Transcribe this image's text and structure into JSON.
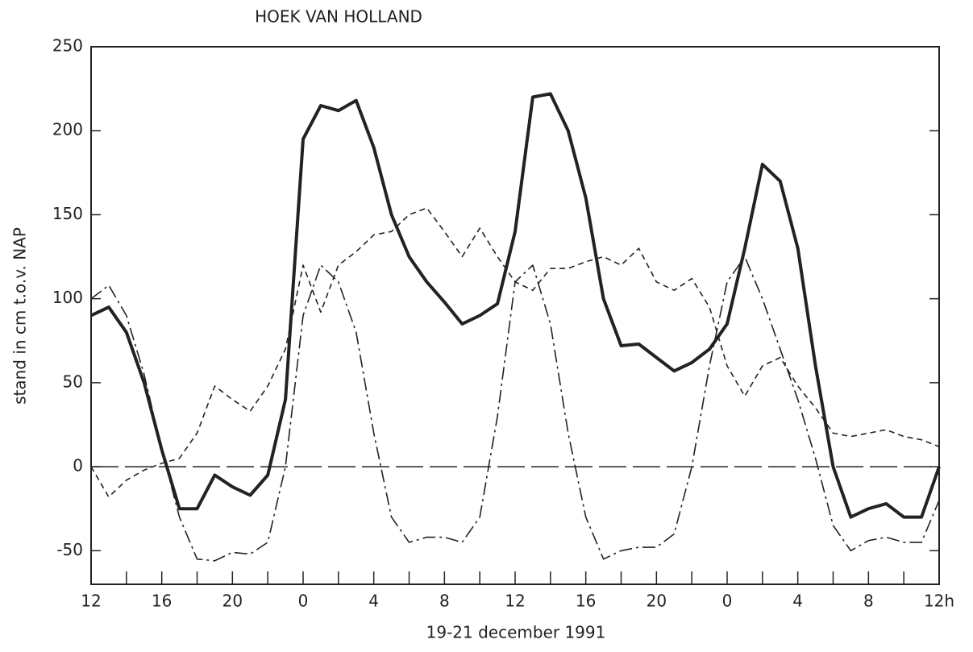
{
  "chart_data": {
    "type": "line",
    "title": "HOEK VAN HOLLAND",
    "x_label": "19-21 december 1991",
    "y_label": "stand in cm t.o.v. NAP",
    "x": [
      0,
      1,
      2,
      3,
      4,
      5,
      6,
      7,
      8,
      9,
      10,
      11,
      12,
      13,
      14,
      15,
      16,
      17,
      18,
      19,
      20,
      21,
      22,
      23,
      24,
      25,
      26,
      27,
      28,
      29,
      30,
      31,
      32,
      33,
      34,
      35,
      36,
      37,
      38,
      39,
      40,
      41,
      42,
      43,
      44,
      45,
      46,
      47,
      48
    ],
    "series": [
      {
        "color": "#222",
        "style": "solid",
        "values": [
          90,
          95,
          80,
          50,
          10,
          -25,
          -25,
          -5,
          -12,
          -17,
          -5,
          40,
          195,
          215,
          212,
          218,
          190,
          150,
          125,
          110,
          98,
          85,
          90,
          97,
          140,
          220,
          222,
          200,
          160,
          100,
          72,
          73,
          65,
          57,
          62,
          70,
          85,
          130,
          180,
          170,
          130,
          60,
          0,
          -30,
          -25,
          -22,
          -30,
          -30,
          0
        ]
      },
      {
        "color": "#222",
        "style": "dashdot",
        "values": [
          100,
          108,
          90,
          55,
          10,
          -30,
          -55,
          -56,
          -51,
          -52,
          -45,
          0,
          90,
          120,
          110,
          80,
          20,
          -30,
          -45,
          -42,
          -42,
          -45,
          -30,
          30,
          110,
          120,
          85,
          20,
          -30,
          -55,
          -50,
          -48,
          -48,
          -40,
          0,
          60,
          110,
          125,
          100,
          70,
          40,
          5,
          -35,
          -50,
          -44,
          -42,
          -45,
          -45,
          -20
        ]
      },
      {
        "color": "#222",
        "style": "dashed",
        "values": [
          0,
          -18,
          -8,
          -2,
          2,
          5,
          20,
          48,
          40,
          33,
          48,
          70,
          120,
          92,
          120,
          128,
          138,
          140,
          150,
          154,
          140,
          125,
          142,
          125,
          110,
          105,
          118,
          118,
          122,
          125,
          120,
          130,
          110,
          105,
          112,
          95,
          60,
          42,
          60,
          65,
          48,
          35,
          20,
          18,
          20,
          22,
          18,
          16,
          12
        ]
      }
    ],
    "xlim": [
      0,
      48
    ],
    "xticks": [
      {
        "value": 0,
        "label": "12"
      },
      {
        "value": 4,
        "label": "16"
      },
      {
        "value": 8,
        "label": "20"
      },
      {
        "value": 12,
        "label": "0"
      },
      {
        "value": 16,
        "label": "4"
      },
      {
        "value": 20,
        "label": "8"
      },
      {
        "value": 24,
        "label": "12"
      },
      {
        "value": 28,
        "label": "16"
      },
      {
        "value": 32,
        "label": "20"
      },
      {
        "value": 36,
        "label": "0"
      },
      {
        "value": 40,
        "label": "4"
      },
      {
        "value": 44,
        "label": "8"
      },
      {
        "value": 48,
        "label": "12h"
      }
    ],
    "xminorticks": [
      2,
      6,
      10,
      14,
      18,
      22,
      26,
      30,
      34,
      38,
      42,
      46
    ],
    "ylim": [
      -70,
      250
    ],
    "yticks": [
      -50,
      0,
      50,
      100,
      150,
      200,
      250
    ]
  }
}
